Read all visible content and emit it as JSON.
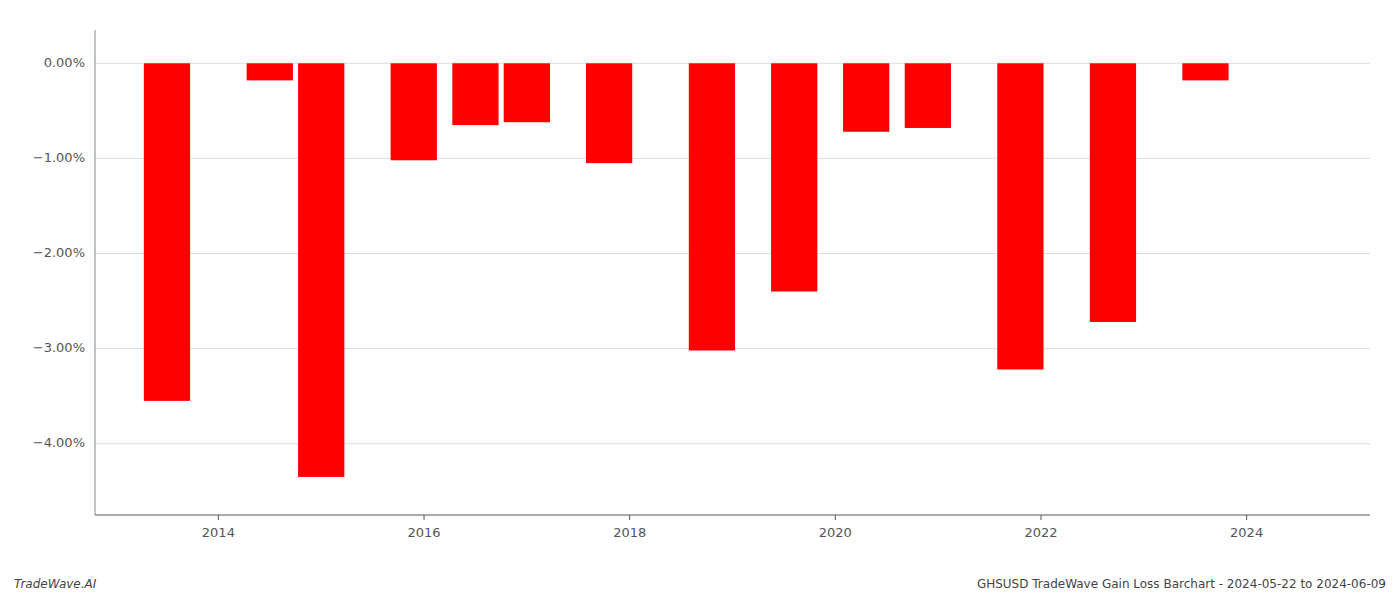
{
  "chart_data": {
    "type": "bar",
    "x": [
      2013.5,
      2014.5,
      2015.0,
      2015.9,
      2016.5,
      2017.0,
      2017.8,
      2018.8,
      2019.6,
      2020.3,
      2020.9,
      2021.8,
      2022.7,
      2023.6
    ],
    "values": [
      -3.55,
      -0.18,
      -4.35,
      -1.02,
      -0.65,
      -0.62,
      -1.05,
      -3.02,
      -2.4,
      -0.72,
      -0.68,
      -3.22,
      -2.72,
      -0.18
    ],
    "color": "#ff0000",
    "xlim": [
      2012.8,
      2025.2
    ],
    "ylim": [
      -4.75,
      0.35
    ],
    "xticks": [
      2014,
      2016,
      2018,
      2020,
      2022,
      2024
    ],
    "yticks": [
      {
        "value": 0.0,
        "label": "0.00%"
      },
      {
        "value": -1.0,
        "label": "−1.00%"
      },
      {
        "value": -2.0,
        "label": "−2.00%"
      },
      {
        "value": -3.0,
        "label": "−3.00%"
      },
      {
        "value": -4.0,
        "label": "−4.00%"
      }
    ],
    "grid": true,
    "annotations": [
      "TradeWave.AI",
      "GHSUSD TradeWave Gain Loss Barchart - 2024-05-22 to 2024-06-09"
    ]
  }
}
